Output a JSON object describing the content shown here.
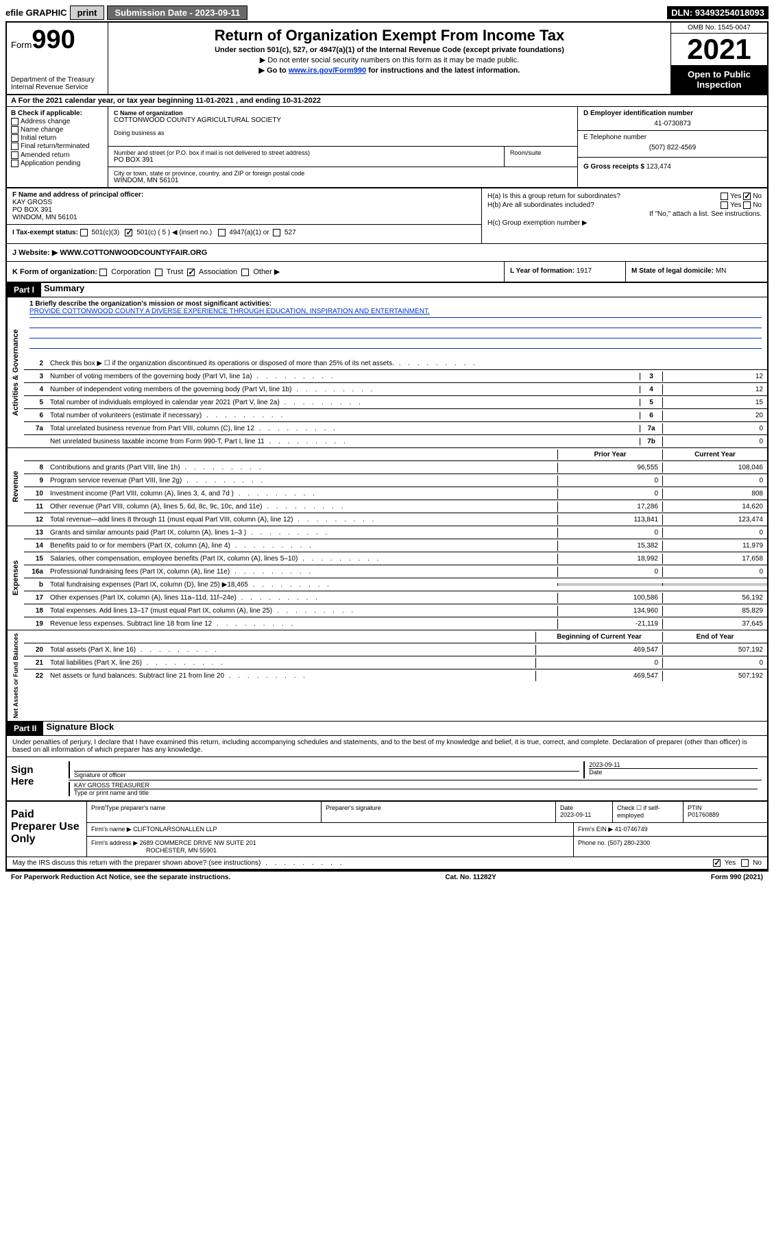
{
  "topbar": {
    "efile": "efile GRAPHIC",
    "print": "print",
    "subdate_lbl": "Submission Date - ",
    "subdate": "2023-09-11",
    "dln_lbl": "DLN: ",
    "dln": "93493254018093"
  },
  "header": {
    "form_word": "Form",
    "form_num": "990",
    "dept": "Department of the Treasury",
    "irs": "Internal Revenue Service",
    "title": "Return of Organization Exempt From Income Tax",
    "sub": "Under section 501(c), 527, or 4947(a)(1) of the Internal Revenue Code (except private foundations)",
    "arrow1": "▶ Do not enter social security numbers on this form as it may be made public.",
    "arrow2_pre": "▶ Go to ",
    "arrow2_link": "www.irs.gov/Form990",
    "arrow2_post": " for instructions and the latest information.",
    "omb": "OMB No. 1545-0047",
    "year": "2021",
    "open": "Open to Public Inspection"
  },
  "row_a": {
    "text": "A For the 2021 calendar year, or tax year beginning 11-01-2021   , and ending 10-31-2022"
  },
  "col_b": {
    "hdr": "B Check if applicable:",
    "items": [
      "Address change",
      "Name change",
      "Initial return",
      "Final return/terminated",
      "Amended return",
      "Application pending"
    ]
  },
  "col_c": {
    "name_lbl": "C Name of organization",
    "name": "COTTONWOOD COUNTY AGRICULTURAL SOCIETY",
    "dba_lbl": "Doing business as",
    "addr_lbl": "Number and street (or P.O. box if mail is not delivered to street address)",
    "room_lbl": "Room/suite",
    "addr": "PO BOX 391",
    "city_lbl": "City or town, state or province, country, and ZIP or foreign postal code",
    "city": "WINDOM, MN  56101"
  },
  "col_d": {
    "ein_lbl": "D Employer identification number",
    "ein": "41-0730873",
    "phone_lbl": "E Telephone number",
    "phone": "(507) 822-4569",
    "gross_lbl": "G Gross receipts $ ",
    "gross": "123,474"
  },
  "col_f": {
    "lbl": "F Name and address of principal officer:",
    "l1": "KAY GROSS",
    "l2": "PO BOX 391",
    "l3": "WINDOM, MN  56101"
  },
  "col_h": {
    "ha": "H(a)  Is this a group return for subordinates?",
    "hb": "H(b)  Are all subordinates included?",
    "hb_note": "If \"No,\" attach a list. See instructions.",
    "hc": "H(c)  Group exemption number ▶",
    "yes": "Yes",
    "no": "No"
  },
  "row_i": {
    "lbl": "I    Tax-exempt status:",
    "o1": "501(c)(3)",
    "o2": "501(c) ( 5 ) ◀ (insert no.)",
    "o3": "4947(a)(1) or",
    "o4": "527"
  },
  "row_j": {
    "lbl": "J   Website: ▶ ",
    "val": "WWW.COTTONWOODCOUNTYFAIR.ORG"
  },
  "row_k": {
    "lbl": "K Form of organization: ",
    "o1": "Corporation",
    "o2": "Trust",
    "o3": "Association",
    "o4": "Other ▶"
  },
  "row_l": {
    "lbl": "L Year of formation: ",
    "val": "1917"
  },
  "row_m": {
    "lbl": "M State of legal domicile: ",
    "val": "MN"
  },
  "part1": {
    "hdr": "Part I",
    "title": "Summary"
  },
  "mission": {
    "q": "1  Briefly describe the organization's mission or most significant activities:",
    "text": "PROVIDE COTTONWOOD COUNTY A DIVERSE EXPERIENCE THROUGH EDUCATION, INSPIRATION AND ENTERTAINMENT."
  },
  "gov_lines": [
    {
      "n": "2",
      "t": "Check this box ▶ ☐  if the organization discontinued its operations or disposed of more than 25% of its net assets.",
      "nn": "",
      "v": ""
    },
    {
      "n": "3",
      "t": "Number of voting members of the governing body (Part VI, line 1a)",
      "nn": "3",
      "v": "12"
    },
    {
      "n": "4",
      "t": "Number of independent voting members of the governing body (Part VI, line 1b)",
      "nn": "4",
      "v": "12"
    },
    {
      "n": "5",
      "t": "Total number of individuals employed in calendar year 2021 (Part V, line 2a)",
      "nn": "5",
      "v": "15"
    },
    {
      "n": "6",
      "t": "Total number of volunteers (estimate if necessary)",
      "nn": "6",
      "v": "20"
    },
    {
      "n": "7a",
      "t": "Total unrelated business revenue from Part VIII, column (C), line 12",
      "nn": "7a",
      "v": "0"
    },
    {
      "n": "",
      "t": "Net unrelated business taxable income from Form 990-T, Part I, line 11",
      "nn": "7b",
      "v": "0"
    }
  ],
  "rev_hdr": {
    "prior": "Prior Year",
    "curr": "Current Year"
  },
  "rev_lines": [
    {
      "n": "8",
      "t": "Contributions and grants (Part VIII, line 1h)",
      "p": "96,555",
      "c": "108,046"
    },
    {
      "n": "9",
      "t": "Program service revenue (Part VIII, line 2g)",
      "p": "0",
      "c": "0"
    },
    {
      "n": "10",
      "t": "Investment income (Part VIII, column (A), lines 3, 4, and 7d )",
      "p": "0",
      "c": "808"
    },
    {
      "n": "11",
      "t": "Other revenue (Part VIII, column (A), lines 5, 6d, 8c, 9c, 10c, and 11e)",
      "p": "17,286",
      "c": "14,620"
    },
    {
      "n": "12",
      "t": "Total revenue—add lines 8 through 11 (must equal Part VIII, column (A), line 12)",
      "p": "113,841",
      "c": "123,474"
    }
  ],
  "exp_lines": [
    {
      "n": "13",
      "t": "Grants and similar amounts paid (Part IX, column (A), lines 1–3 )",
      "p": "0",
      "c": "0"
    },
    {
      "n": "14",
      "t": "Benefits paid to or for members (Part IX, column (A), line 4)",
      "p": "15,382",
      "c": "11,979"
    },
    {
      "n": "15",
      "t": "Salaries, other compensation, employee benefits (Part IX, column (A), lines 5–10)",
      "p": "18,992",
      "c": "17,658"
    },
    {
      "n": "16a",
      "t": "Professional fundraising fees (Part IX, column (A), line 11e)",
      "p": "0",
      "c": "0"
    },
    {
      "n": "b",
      "t": "Total fundraising expenses (Part IX, column (D), line 25) ▶18,465",
      "p": "shade",
      "c": "shade"
    },
    {
      "n": "17",
      "t": "Other expenses (Part IX, column (A), lines 11a–11d, 11f–24e)",
      "p": "100,586",
      "c": "56,192"
    },
    {
      "n": "18",
      "t": "Total expenses. Add lines 13–17 (must equal Part IX, column (A), line 25)",
      "p": "134,960",
      "c": "85,829"
    },
    {
      "n": "19",
      "t": "Revenue less expenses. Subtract line 18 from line 12",
      "p": "-21,119",
      "c": "37,645"
    }
  ],
  "net_hdr": {
    "beg": "Beginning of Current Year",
    "end": "End of Year"
  },
  "net_lines": [
    {
      "n": "20",
      "t": "Total assets (Part X, line 16)",
      "p": "469,547",
      "c": "507,192"
    },
    {
      "n": "21",
      "t": "Total liabilities (Part X, line 26)",
      "p": "0",
      "c": "0"
    },
    {
      "n": "22",
      "t": "Net assets or fund balances. Subtract line 21 from line 20",
      "p": "469,547",
      "c": "507,192"
    }
  ],
  "vtabs": {
    "gov": "Activities & Governance",
    "rev": "Revenue",
    "exp": "Expenses",
    "net": "Net Assets or Fund Balances"
  },
  "part2": {
    "hdr": "Part II",
    "title": "Signature Block"
  },
  "declare": "Under penalties of perjury, I declare that I have examined this return, including accompanying schedules and statements, and to the best of my knowledge and belief, it is true, correct, and complete. Declaration of preparer (other than officer) is based on all information of which preparer has any knowledge.",
  "sign": {
    "here": "Sign Here",
    "sig_lbl": "Signature of officer",
    "date_lbl": "Date",
    "date": "2023-09-11",
    "name": "KAY GROSS TREASURER",
    "name_lbl": "Type or print name and title"
  },
  "paid": {
    "hdr": "Paid Preparer Use Only",
    "c1": "Print/Type preparer's name",
    "c2": "Preparer's signature",
    "c3_lbl": "Date",
    "c3": "2023-09-11",
    "c4_lbl": "Check ☐ if self-employed",
    "c5_lbl": "PTIN",
    "c5": "P01760889",
    "firm_name_lbl": "Firm's name     ▶ ",
    "firm_name": "CLIFTONLARSONALLEN LLP",
    "firm_ein_lbl": "Firm's EIN ▶ ",
    "firm_ein": "41-0746749",
    "firm_addr_lbl": "Firm's address ▶ ",
    "firm_addr1": "2689 COMMERCE DRIVE NW SUITE 201",
    "firm_addr2": "ROCHESTER, MN  55901",
    "firm_phone_lbl": "Phone no. ",
    "firm_phone": "(507) 280-2300"
  },
  "may_irs": {
    "q": "May the IRS discuss this return with the preparer shown above? (see instructions)",
    "yes": "Yes",
    "no": "No"
  },
  "footer": {
    "l": "For Paperwork Reduction Act Notice, see the separate instructions.",
    "m": "Cat. No. 11282Y",
    "r": "Form 990 (2021)"
  }
}
